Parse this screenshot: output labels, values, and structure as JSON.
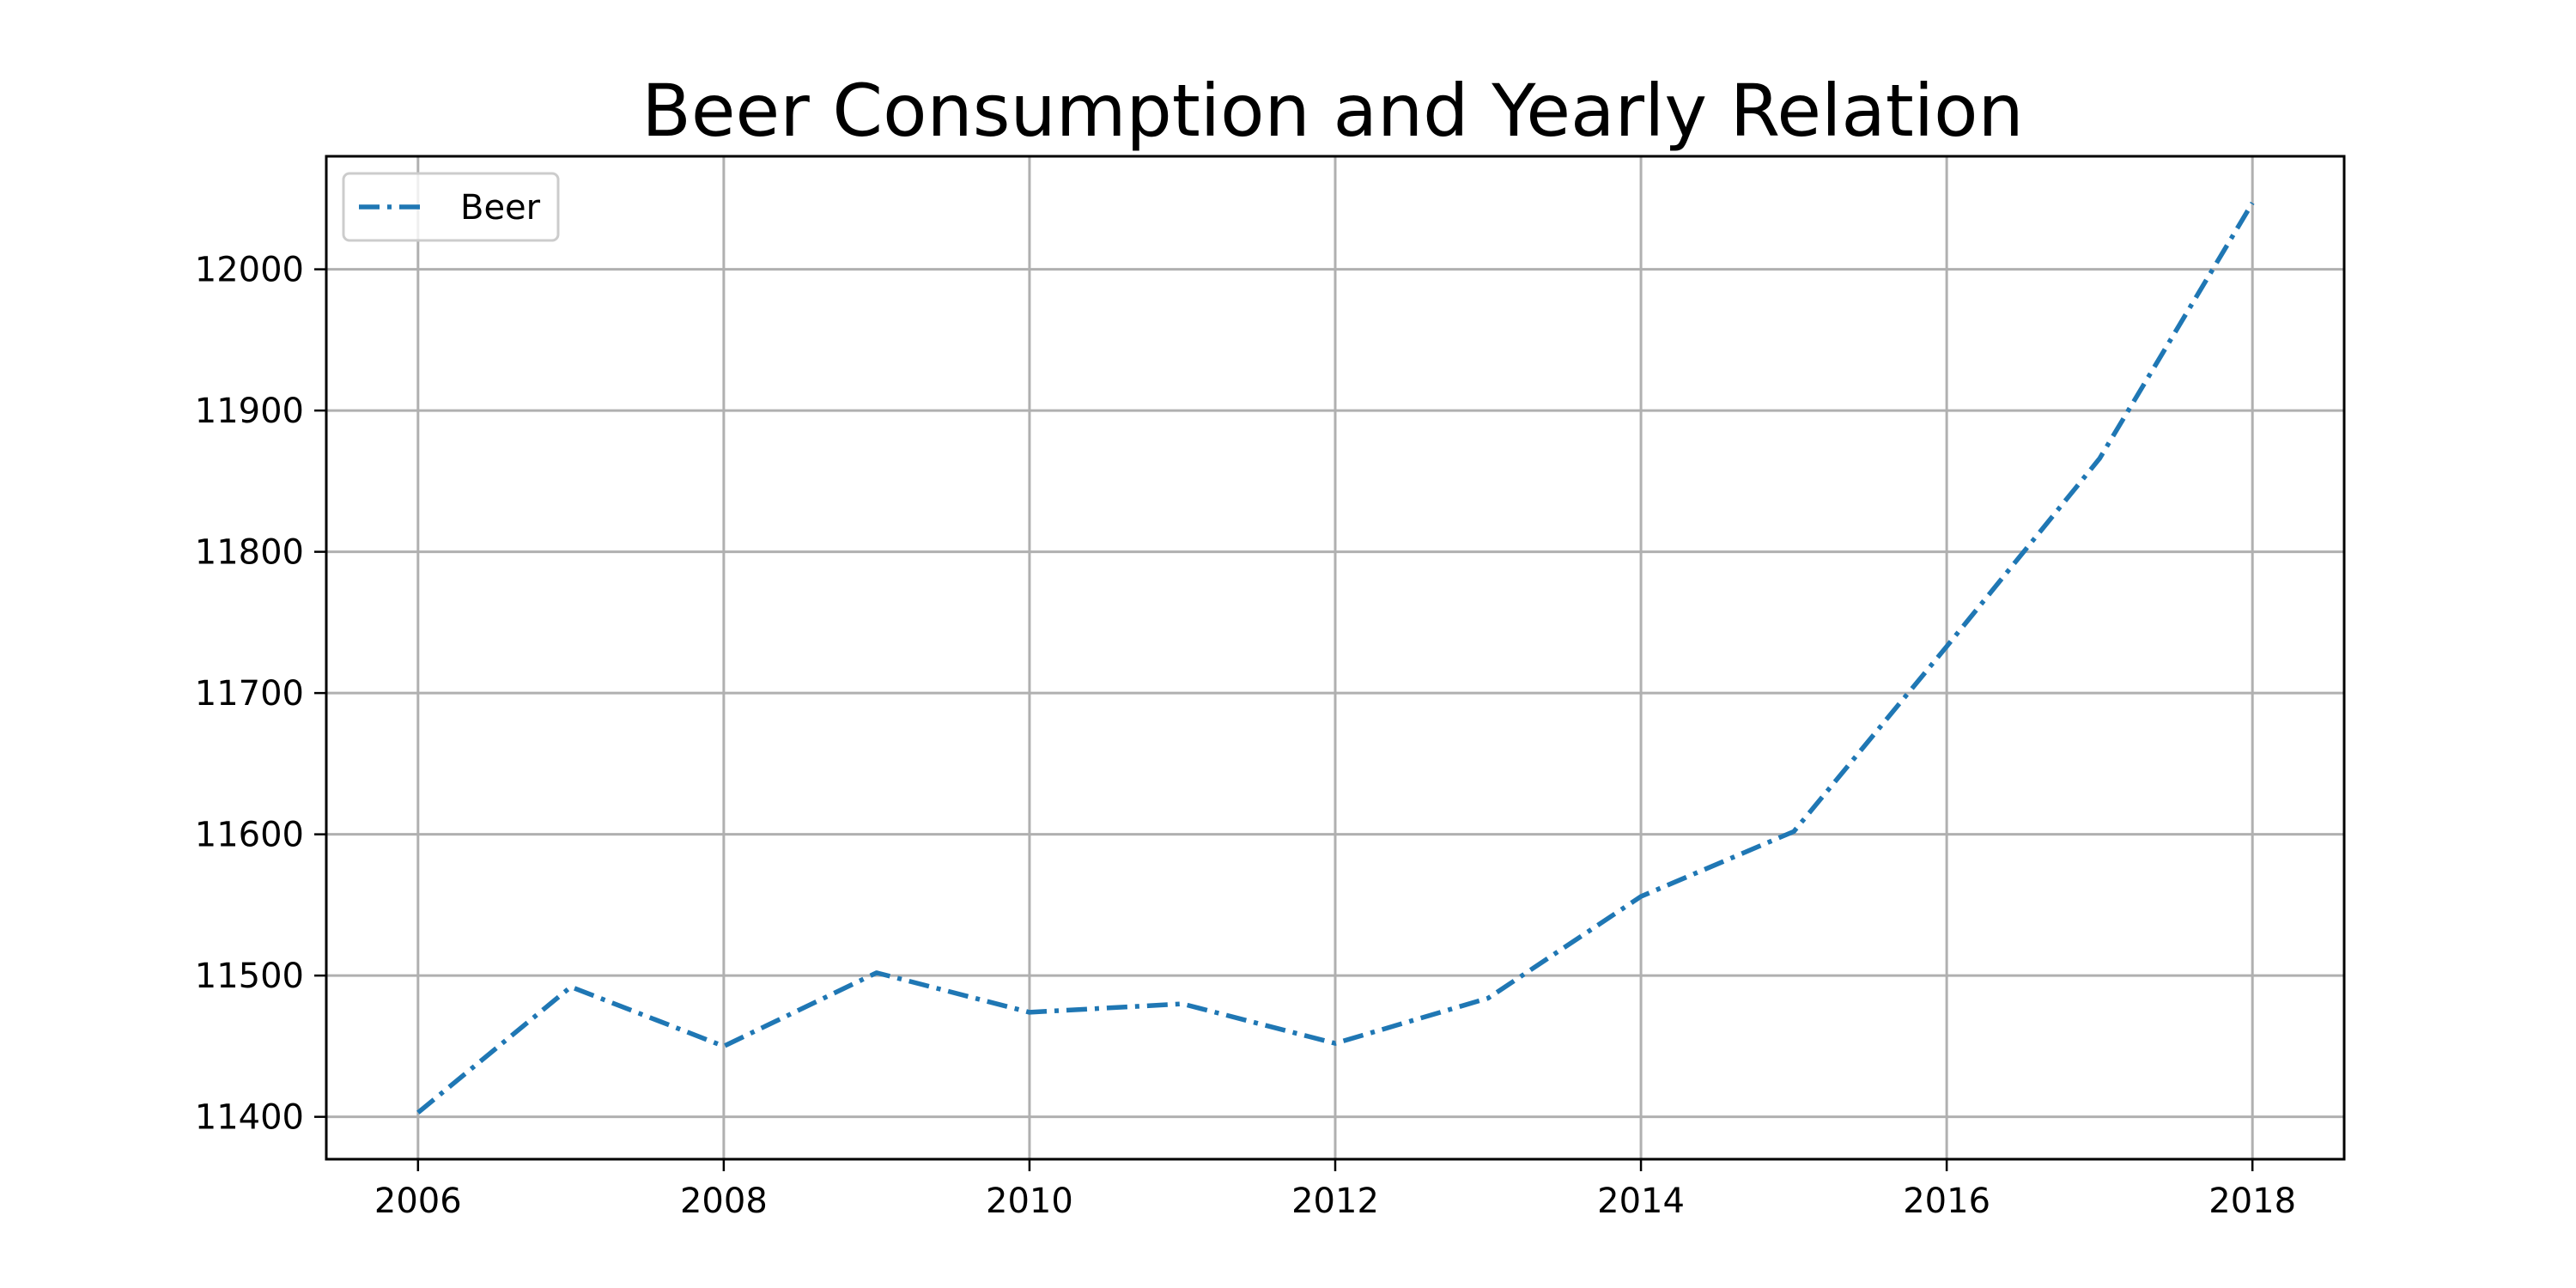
{
  "chart_data": {
    "type": "line",
    "title": "Beer Consumption and Yearly Relation",
    "xlabel": "",
    "ylabel": "",
    "x": [
      2006,
      2007,
      2008,
      2009,
      2010,
      2011,
      2012,
      2013,
      2014,
      2015,
      2016,
      2017,
      2018
    ],
    "series": [
      {
        "name": "Beer",
        "values": [
          11403,
          11492,
          11450,
          11502,
          11474,
          11480,
          11452,
          11484,
          11556,
          11602,
          11733,
          11866,
          12047
        ],
        "color": "#1f77b4",
        "line_style": "dash-dot"
      }
    ],
    "xlim": [
      2005.4,
      2018.6
    ],
    "ylim": [
      11370,
      12080
    ],
    "xticks": [
      2006,
      2008,
      2010,
      2012,
      2014,
      2016,
      2018
    ],
    "yticks": [
      11400,
      11500,
      11600,
      11700,
      11800,
      11900,
      12000
    ],
    "grid": true,
    "legend_position": "upper-left"
  }
}
